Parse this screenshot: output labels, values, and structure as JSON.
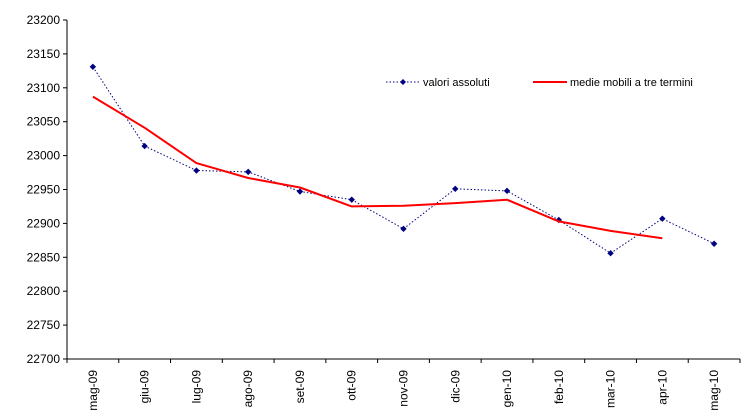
{
  "chart_data": {
    "type": "line",
    "categories": [
      "mag-09",
      "giu-09",
      "lug-09",
      "ago-09",
      "set-09",
      "ott-09",
      "nov-09",
      "dic-09",
      "gen-10",
      "feb-10",
      "mar-10",
      "apr-10",
      "mag-10"
    ],
    "series": [
      {
        "name": "valori assoluti",
        "values": [
          23131,
          23014,
          22978,
          22976,
          22947,
          22935,
          22892,
          22951,
          22948,
          22905,
          22856,
          22907,
          22870
        ],
        "color": "#000080",
        "style": "dotted-with-diamond-markers"
      },
      {
        "name": "medie mobili a tre termini",
        "values": [
          23087,
          23041,
          22989,
          22967,
          22953,
          22925,
          22926,
          22930,
          22935,
          22903,
          22889,
          22878,
          null
        ],
        "color": "#ff0000",
        "style": "solid"
      }
    ],
    "yticks": [
      22700,
      22750,
      22800,
      22850,
      22900,
      22950,
      23000,
      23050,
      23100,
      23150,
      23200
    ],
    "ylim": [
      22700,
      23200
    ],
    "grid": false,
    "legend_position": "top-right"
  }
}
